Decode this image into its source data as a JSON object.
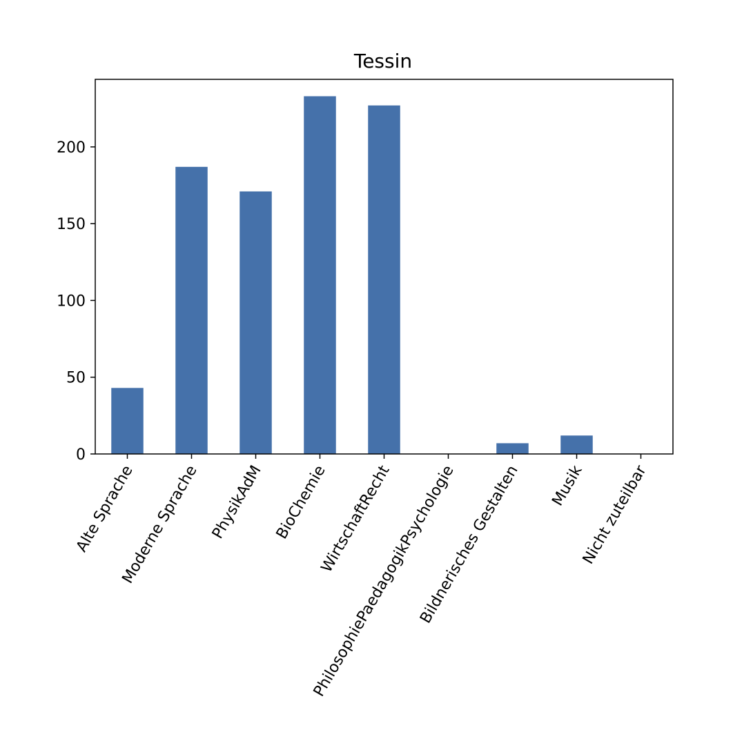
{
  "chart_data": {
    "type": "bar",
    "title": "Tessin",
    "xlabel": "",
    "ylabel": "",
    "categories": [
      "Alte Sprache",
      "Moderne Sprache",
      "PhysikAdM",
      "BioChemie",
      "WirtschaftRecht",
      "PhilosophiePaedagogikPsychologie",
      "Bildnerisches Gestalten",
      "Musik",
      "Nicht zuteilbar"
    ],
    "values": [
      43,
      187,
      171,
      233,
      227,
      0,
      7,
      12,
      0
    ],
    "ylim": [
      0,
      244
    ],
    "yticks": [
      0,
      50,
      100,
      150,
      200
    ],
    "bar_color": "#4571aa",
    "grid": false,
    "legend": "none"
  }
}
